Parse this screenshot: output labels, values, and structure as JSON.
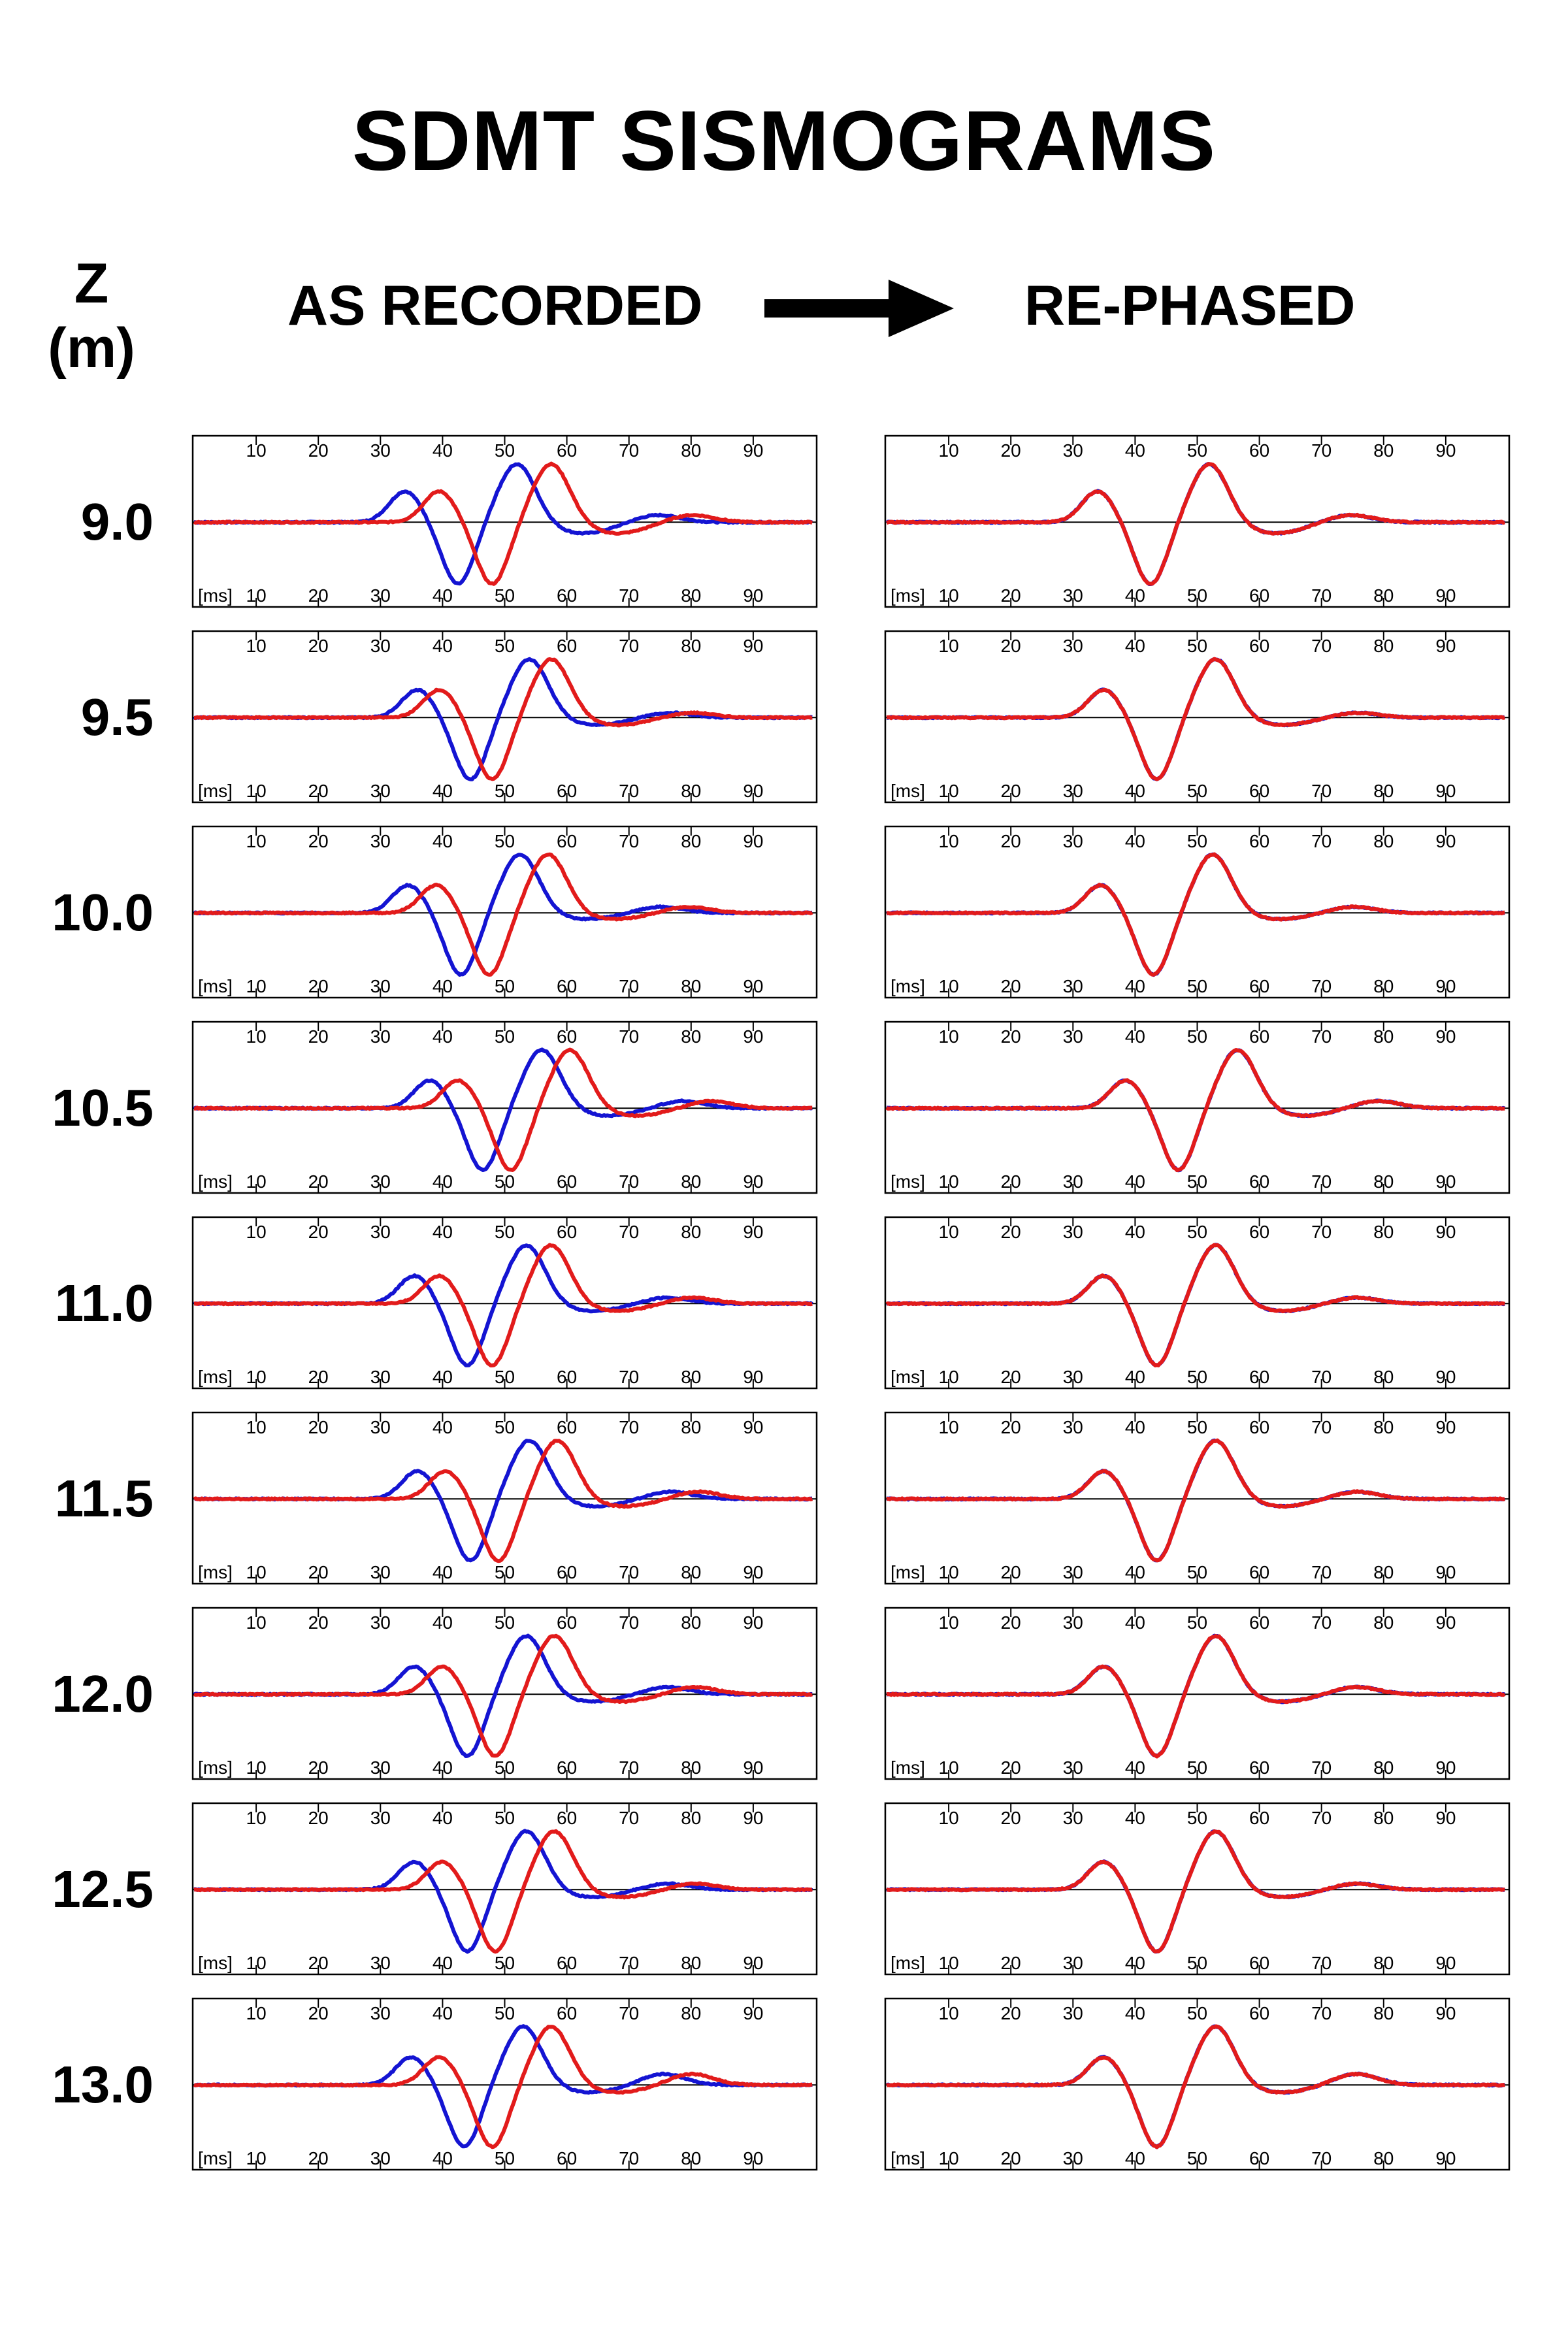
{
  "title": "SDMT SISMOGRAMS",
  "z_label": "Z",
  "z_unit": "(m)",
  "left_heading": "AS RECORDED",
  "right_heading": "RE-PHASED",
  "colors": {
    "blue": "#1414d2",
    "red": "#e21b1b",
    "frame": "#000000"
  },
  "chart_data": {
    "type": "line",
    "description_units": {
      "x": "ms"
    },
    "x_ticks": [
      10,
      20,
      30,
      40,
      50,
      60,
      70,
      80,
      90
    ],
    "x_unit_label": "[ms]",
    "xlim": [
      0,
      100
    ],
    "depths": [
      "9.0",
      "9.5",
      "10.0",
      "10.5",
      "11.0",
      "11.5",
      "12.0",
      "12.5",
      "13.0"
    ],
    "panels": [
      {
        "depth": "9.0",
        "blue": {
          "t": 42.5,
          "p": 1.0,
          "amps": [
            0.5,
            -1.0,
            0.95,
            -0.18,
            0.12
          ],
          "tail": [
            -0.05,
            -0.05
          ]
        },
        "red": {
          "t": 48.0,
          "p": 1.0,
          "amps": [
            0.5,
            -1.0,
            0.95,
            -0.18,
            0.12
          ],
          "tail": [
            -0.05,
            -0.05
          ]
        },
        "rp_red_t": 42.5,
        "rp_blue_t": 42.5
      },
      {
        "depth": "9.5",
        "blue": {
          "t": 44.5,
          "p": 1.0,
          "amps": [
            0.45,
            -1.0,
            0.95,
            -0.12,
            0.08
          ],
          "tail": [
            -0.05,
            0.0
          ]
        },
        "red": {
          "t": 48.0,
          "p": 1.0,
          "amps": [
            0.45,
            -1.0,
            0.95,
            -0.12,
            0.08
          ],
          "tail": [
            -0.05,
            0.0
          ]
        },
        "rp_red_t": 43.5,
        "rp_blue_t": 43.5
      },
      {
        "depth": "10.0",
        "blue": {
          "t": 43.0,
          "p": 1.0,
          "amps": [
            0.45,
            -1.0,
            0.95,
            -0.1,
            0.1
          ],
          "tail": [
            -0.02,
            0.0
          ]
        },
        "red": {
          "t": 47.5,
          "p": 1.0,
          "amps": [
            0.45,
            -1.0,
            0.95,
            -0.1,
            0.1
          ],
          "tail": [
            -0.02,
            0.0
          ]
        },
        "rp_red_t": 43.0,
        "rp_blue_t": 43.0
      },
      {
        "depth": "10.5",
        "blue": {
          "t": 46.5,
          "p": 1.0,
          "amps": [
            0.45,
            -1.0,
            0.95,
            -0.12,
            0.12
          ],
          "tail": [
            -0.05,
            0.0
          ]
        },
        "red": {
          "t": 51.0,
          "p": 1.0,
          "amps": [
            0.45,
            -1.0,
            0.95,
            -0.12,
            0.12
          ],
          "tail": [
            -0.05,
            0.0
          ]
        },
        "rp_red_t": 47.0,
        "rp_blue_t": 47.0
      },
      {
        "depth": "11.0",
        "blue": {
          "t": 44.0,
          "p": 1.0,
          "amps": [
            0.45,
            -1.0,
            0.95,
            -0.12,
            0.1
          ],
          "tail": [
            -0.05,
            0.0
          ]
        },
        "red": {
          "t": 48.0,
          "p": 1.0,
          "amps": [
            0.45,
            -1.0,
            0.95,
            -0.12,
            0.1
          ],
          "tail": [
            -0.05,
            0.0
          ]
        },
        "rp_red_t": 43.5,
        "rp_blue_t": 43.5
      },
      {
        "depth": "11.5",
        "blue": {
          "t": 44.5,
          "p": 1.0,
          "amps": [
            0.45,
            -1.0,
            0.95,
            -0.12,
            0.12
          ],
          "tail": [
            -0.05,
            0.0
          ]
        },
        "red": {
          "t": 49.0,
          "p": 1.0,
          "amps": [
            0.45,
            -1.0,
            0.95,
            -0.12,
            0.12
          ],
          "tail": [
            -0.05,
            0.0
          ]
        },
        "rp_red_t": 43.5,
        "rp_blue_t": 43.5
      },
      {
        "depth": "12.0",
        "blue": {
          "t": 44.0,
          "p": 1.0,
          "amps": [
            0.45,
            -1.0,
            0.95,
            -0.12,
            0.12
          ],
          "tail": [
            -0.05,
            0.0
          ]
        },
        "red": {
          "t": 48.5,
          "p": 1.0,
          "amps": [
            0.45,
            -1.0,
            0.95,
            -0.12,
            0.12
          ],
          "tail": [
            -0.05,
            0.0
          ]
        },
        "rp_red_t": 43.5,
        "rp_blue_t": 43.5
      },
      {
        "depth": "12.5",
        "blue": {
          "t": 44.0,
          "p": 1.0,
          "amps": [
            0.45,
            -1.0,
            0.95,
            -0.12,
            0.1
          ],
          "tail": [
            -0.05,
            0.0
          ]
        },
        "red": {
          "t": 48.5,
          "p": 1.0,
          "amps": [
            0.45,
            -1.0,
            0.95,
            -0.12,
            0.1
          ],
          "tail": [
            -0.05,
            0.0
          ]
        },
        "rp_red_t": 43.5,
        "rp_blue_t": 43.5
      },
      {
        "depth": "13.0",
        "blue": {
          "t": 43.5,
          "p": 1.0,
          "amps": [
            0.45,
            -1.0,
            0.95,
            -0.12,
            0.18
          ],
          "tail": [
            -0.05,
            0.0
          ]
        },
        "red": {
          "t": 48.0,
          "p": 1.0,
          "amps": [
            0.45,
            -1.0,
            0.95,
            -0.12,
            0.18
          ],
          "tail": [
            -0.05,
            0.0
          ]
        },
        "rp_red_t": 43.5,
        "rp_blue_t": 43.5
      }
    ]
  }
}
